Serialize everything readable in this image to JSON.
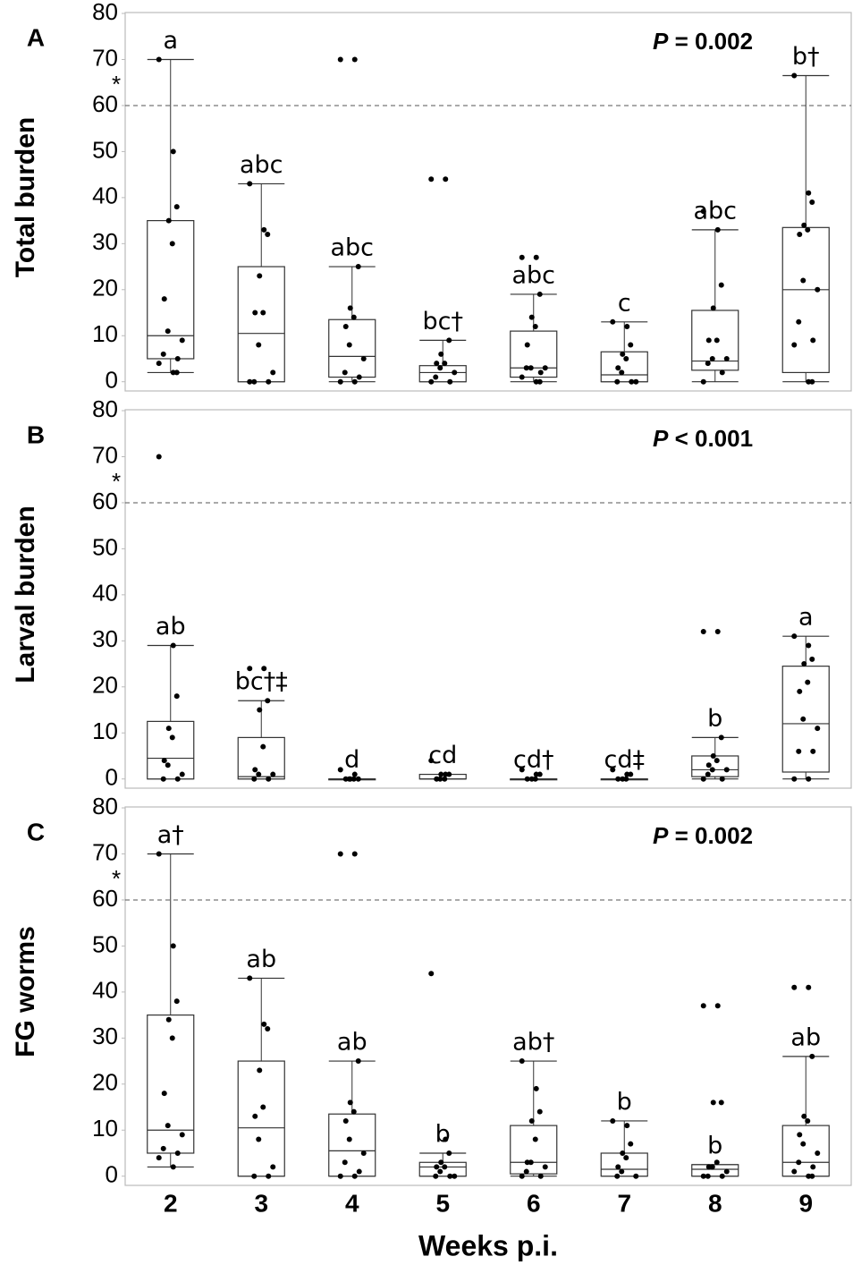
{
  "chart_data": [
    {
      "type": "box",
      "panel": "A",
      "ylabel": "Total burden",
      "stat_symbol": "P",
      "stat_text": "= 0.002",
      "ylim": [
        -2,
        80.2
      ],
      "yticks": [
        0,
        10,
        20,
        30,
        40,
        50,
        60,
        70,
        80
      ],
      "ref_line": 60,
      "ref_label": "*",
      "boxes": [
        {
          "low": 2,
          "q1": 5,
          "median": 10,
          "q3": 35,
          "high": 70,
          "label": "a"
        },
        {
          "low": 0,
          "q1": 0,
          "median": 10.5,
          "q3": 25,
          "high": 43,
          "label": "abc"
        },
        {
          "low": 0,
          "q1": 1,
          "median": 5.5,
          "q3": 13.5,
          "high": 25,
          "label": "abc"
        },
        {
          "low": 0,
          "q1": 0,
          "median": 2,
          "q3": 3.5,
          "high": 9,
          "label": "bc†"
        },
        {
          "low": 0,
          "q1": 1,
          "median": 3,
          "q3": 11,
          "high": 19,
          "label": "abc"
        },
        {
          "low": 0,
          "q1": 0,
          "median": 1.5,
          "q3": 6.5,
          "high": 13,
          "label": "c"
        },
        {
          "low": 0,
          "q1": 2.5,
          "median": 4.5,
          "q3": 15.5,
          "high": 33,
          "label": "abc"
        },
        {
          "low": 0,
          "q1": 2,
          "median": 20,
          "q3": 33.5,
          "high": 66.5,
          "label": "b†"
        }
      ],
      "points": [
        [
          70,
          50,
          38,
          35,
          30,
          18,
          11,
          9,
          6,
          5,
          4,
          2,
          2
        ],
        [
          43,
          33,
          32,
          23,
          15,
          15,
          8,
          2,
          0,
          0,
          0
        ],
        [
          70,
          70,
          25,
          16,
          14,
          12,
          8,
          5,
          2,
          1,
          0,
          0
        ],
        [
          44,
          44,
          9,
          6,
          4,
          4,
          3,
          2,
          1,
          0,
          0
        ],
        [
          27,
          27,
          19,
          14,
          12,
          8,
          3,
          3,
          3,
          2,
          1,
          0,
          0
        ],
        [
          13,
          12,
          8,
          6,
          5,
          3,
          2,
          0,
          0,
          0
        ],
        [
          37,
          33,
          21,
          16,
          9,
          9,
          5,
          5,
          4,
          2,
          0
        ],
        [
          66.5,
          41,
          39,
          34,
          33,
          32,
          22,
          20,
          13,
          9,
          8,
          0,
          0
        ]
      ]
    },
    {
      "type": "box",
      "panel": "B",
      "ylabel": "Larval burden",
      "stat_symbol": "P",
      "stat_text": "< 0.001",
      "ylim": [
        -2,
        80.2
      ],
      "yticks": [
        0,
        10,
        20,
        30,
        40,
        50,
        60,
        70,
        80
      ],
      "ref_line": 60,
      "ref_label": "*",
      "boxes": [
        {
          "low": 0,
          "q1": 0,
          "median": 4.5,
          "q3": 12.5,
          "high": 29,
          "label": "ab"
        },
        {
          "low": 0,
          "q1": 0,
          "median": 0.5,
          "q3": 9,
          "high": 17,
          "label": "bc†‡"
        },
        {
          "low": 0,
          "q1": 0,
          "median": 0,
          "q3": 0,
          "high": 0,
          "label": "d"
        },
        {
          "low": 0,
          "q1": 0,
          "median": 0,
          "q3": 1,
          "high": 1,
          "label": "cd"
        },
        {
          "low": 0,
          "q1": 0,
          "median": 0,
          "q3": 0,
          "high": 0,
          "label": "cd†"
        },
        {
          "low": 0,
          "q1": 0,
          "median": 0,
          "q3": 0,
          "high": 0,
          "label": "cd‡"
        },
        {
          "low": 0,
          "q1": 0.5,
          "median": 2,
          "q3": 5,
          "high": 9,
          "label": "b"
        },
        {
          "low": 0,
          "q1": 1.5,
          "median": 12,
          "q3": 24.5,
          "high": 31,
          "label": "a"
        }
      ],
      "points": [
        [
          70,
          29,
          18,
          11,
          9,
          4,
          3,
          1,
          0,
          0
        ],
        [
          24,
          24,
          17,
          15,
          7,
          2,
          1,
          1,
          0,
          0
        ],
        [
          2,
          1,
          0,
          0,
          0,
          0,
          0
        ],
        [
          4,
          1,
          1,
          1,
          0,
          0,
          0
        ],
        [
          2,
          1,
          1,
          0,
          0,
          0
        ],
        [
          2,
          1,
          1,
          0,
          0,
          0
        ],
        [
          32,
          32,
          9,
          5,
          4,
          3,
          2,
          2,
          1,
          0,
          0
        ],
        [
          31,
          29,
          26,
          25,
          21,
          19,
          13,
          11,
          6,
          6,
          0,
          0
        ]
      ]
    },
    {
      "type": "box",
      "panel": "C",
      "ylabel": "FG worms",
      "stat_symbol": "P",
      "stat_text": "= 0.002",
      "ylim": [
        -2,
        80.2
      ],
      "yticks": [
        0,
        10,
        20,
        30,
        40,
        50,
        60,
        70,
        80
      ],
      "ref_line": 60,
      "ref_label": "*",
      "categories": [
        "2",
        "3",
        "4",
        "5",
        "6",
        "7",
        "8",
        "9"
      ],
      "xlabel": "Weeks p.i.",
      "boxes": [
        {
          "low": 2,
          "q1": 5,
          "median": 10,
          "q3": 35,
          "high": 70,
          "label": "a†"
        },
        {
          "low": 0,
          "q1": 0,
          "median": 10.5,
          "q3": 25,
          "high": 43,
          "label": "ab"
        },
        {
          "low": 0,
          "q1": 0,
          "median": 5.5,
          "q3": 13.5,
          "high": 25,
          "label": "ab"
        },
        {
          "low": 0,
          "q1": 0,
          "median": 2,
          "q3": 3,
          "high": 5,
          "label": "b"
        },
        {
          "low": 0,
          "q1": 0.5,
          "median": 3,
          "q3": 11,
          "high": 25,
          "label": "ab†"
        },
        {
          "low": 0,
          "q1": 0,
          "median": 1.5,
          "q3": 5,
          "high": 12,
          "label": "b"
        },
        {
          "low": 0,
          "q1": 0,
          "median": 1.5,
          "q3": 2.5,
          "high": 2.5,
          "label": "b"
        },
        {
          "low": 0,
          "q1": 0,
          "median": 3,
          "q3": 11,
          "high": 26,
          "label": "ab"
        }
      ],
      "points": [
        [
          70,
          50,
          38,
          34,
          30,
          18,
          11,
          9,
          6,
          5,
          4,
          2
        ],
        [
          43,
          33,
          32,
          23,
          15,
          13,
          8,
          2,
          0,
          0
        ],
        [
          70,
          70,
          25,
          16,
          14,
          12,
          8,
          5,
          3,
          1,
          0,
          0
        ],
        [
          44,
          8,
          5,
          3,
          2,
          2,
          1,
          0,
          0,
          0
        ],
        [
          25,
          19,
          14,
          12,
          8,
          3,
          3,
          2,
          1,
          0,
          0
        ],
        [
          12,
          11,
          7,
          5,
          4,
          2,
          1,
          0,
          0
        ],
        [
          37,
          37,
          16,
          16,
          3,
          2,
          2,
          1,
          0,
          0,
          0
        ],
        [
          41,
          41,
          26,
          13,
          12,
          9,
          7,
          5,
          3,
          2,
          1,
          0,
          0
        ]
      ]
    }
  ]
}
